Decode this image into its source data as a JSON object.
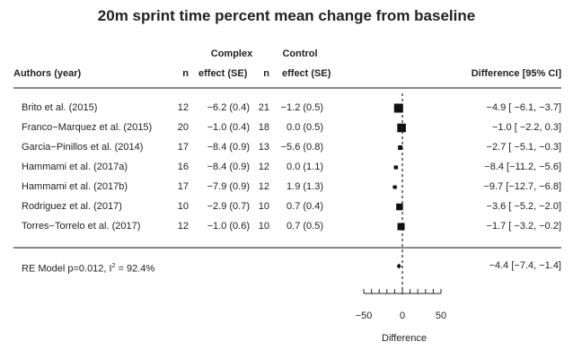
{
  "chart_data": {
    "type": "forest",
    "title": "20m sprint time percent mean change from baseline",
    "group_headers": [
      "Complex",
      "Control"
    ],
    "columns": [
      "Authors (year)",
      "n",
      "effect (SE)",
      "n",
      "effect (SE)",
      "Difference [95% CI]"
    ],
    "studies": [
      {
        "author": "Brito et al. (2015)",
        "n1": "12",
        "e1": "−6.2 (0.4)",
        "n2": "21",
        "e2": "−1.2 (0.5)",
        "est": -4.9,
        "lo": -6.1,
        "hi": -3.7,
        "label": "−4.9 [ −6.1, −3.7]"
      },
      {
        "author": "Franco−Marquez et al. (2015)",
        "n1": "20",
        "e1": "−1.0 (0.4)",
        "n2": "18",
        "e2": "0.0 (0.5)",
        "est": -1.0,
        "lo": -2.2,
        "hi": 0.3,
        "label": "−1.0 [ −2.2,  0.3]"
      },
      {
        "author": "Garcia−Pinillos et al. (2014)",
        "n1": "17",
        "e1": "−8.4 (0.9)",
        "n2": "13",
        "e2": "−5.6 (0.8)",
        "est": -2.7,
        "lo": -5.1,
        "hi": -0.3,
        "label": "−2.7 [ −5.1, −0.3]"
      },
      {
        "author": "Hammami et al. (2017a)",
        "n1": "16",
        "e1": "−8.4 (0.9)",
        "n2": "12",
        "e2": "0.0 (1.1)",
        "est": -8.4,
        "lo": -11.2,
        "hi": -5.6,
        "label": "−8.4 [−11.2, −5.6]"
      },
      {
        "author": "Hammami et al. (2017b)",
        "n1": "17",
        "e1": "−7.9 (0.9)",
        "n2": "12",
        "e2": "1.9 (1.3)",
        "est": -9.7,
        "lo": -12.7,
        "hi": -6.8,
        "label": "−9.7 [−12.7, −6.8]"
      },
      {
        "author": "Rodriguez et al. (2017)",
        "n1": "10",
        "e1": "−2.9 (0.7)",
        "n2": "10",
        "e2": "0.7 (0.4)",
        "est": -3.6,
        "lo": -5.2,
        "hi": -2.0,
        "label": "−3.6 [ −5.2, −2.0]"
      },
      {
        "author": "Torres−Torrelo et al. (2017)",
        "n1": "12",
        "e1": "−1.0 (0.6)",
        "n2": "10",
        "e2": "0.7 (0.5)",
        "est": -1.7,
        "lo": -3.2,
        "hi": -0.2,
        "label": "−1.7 [ −3.2, −0.2]"
      }
    ],
    "summary": {
      "label_prefix": "RE Model p=0.012, I",
      "sup": "2",
      "label_suffix": " = 92.4%",
      "est": -4.4,
      "lo": -7.4,
      "hi": -1.4,
      "ci_label": "−4.4 [−7.4, −1.4]"
    },
    "xlabel": "Difference",
    "xlim": [
      -50,
      50
    ],
    "xticks": [
      -50,
      0,
      50
    ],
    "xtick_labels": [
      "−50",
      "0",
      "50"
    ],
    "minor_tick_step": 10,
    "reference_line": 0
  }
}
